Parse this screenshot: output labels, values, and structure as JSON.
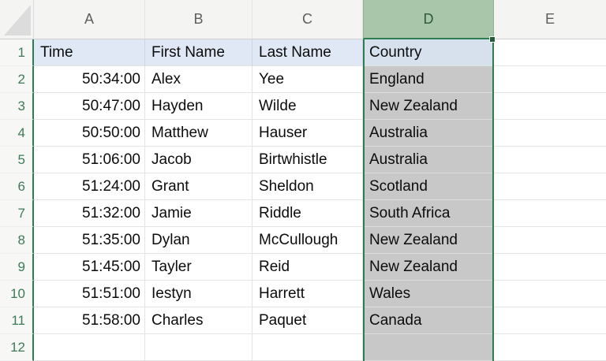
{
  "sheet": {
    "column_headers": [
      "A",
      "B",
      "C",
      "D",
      "E"
    ],
    "selected_column": "D",
    "row_numbers": [
      "1",
      "2",
      "3",
      "4",
      "5",
      "6",
      "7",
      "8",
      "9",
      "10",
      "11",
      "12"
    ],
    "header_row": {
      "a": "Time",
      "b": "First Name",
      "c": "Last Name",
      "d": "Country",
      "e": ""
    },
    "rows": [
      {
        "a": "50:34:00",
        "b": "Alex",
        "c": "Yee",
        "d": "England",
        "e": ""
      },
      {
        "a": "50:47:00",
        "b": "Hayden",
        "c": "Wilde",
        "d": "New Zealand",
        "e": ""
      },
      {
        "a": "50:50:00",
        "b": "Matthew",
        "c": "Hauser",
        "d": "Australia",
        "e": ""
      },
      {
        "a": "51:06:00",
        "b": "Jacob",
        "c": "Birtwhistle",
        "d": "Australia",
        "e": ""
      },
      {
        "a": "51:24:00",
        "b": "Grant",
        "c": "Sheldon",
        "d": "Scotland",
        "e": ""
      },
      {
        "a": "51:32:00",
        "b": "Jamie",
        "c": "Riddle",
        "d": "South Africa",
        "e": ""
      },
      {
        "a": "51:35:00",
        "b": "Dylan",
        "c": "McCullough",
        "d": "New Zealand",
        "e": ""
      },
      {
        "a": "51:45:00",
        "b": "Tayler",
        "c": "Reid",
        "d": "New Zealand",
        "e": ""
      },
      {
        "a": "51:51:00",
        "b": "Iestyn",
        "c": "Harrett",
        "d": "Wales",
        "e": ""
      },
      {
        "a": "51:58:00",
        "b": "Charles",
        "c": "Paquet",
        "d": "Canada",
        "e": ""
      },
      {
        "a": "",
        "b": "",
        "c": "",
        "d": "",
        "e": ""
      }
    ],
    "colors": {
      "selection_border_green": "#2e7d51",
      "selected_column_header_fill": "#a9c5aa",
      "selected_column_header_text": "#2b5a3d",
      "selected_cells_fill": "#c8c8c8",
      "table_header_fill": "#dfe8f4",
      "selected_table_header_fill": "#d7e1ee",
      "row_number_text": "#3e7a57",
      "column_letter_text": "#5e5e5e",
      "gridline": "#e4e4e4"
    }
  }
}
